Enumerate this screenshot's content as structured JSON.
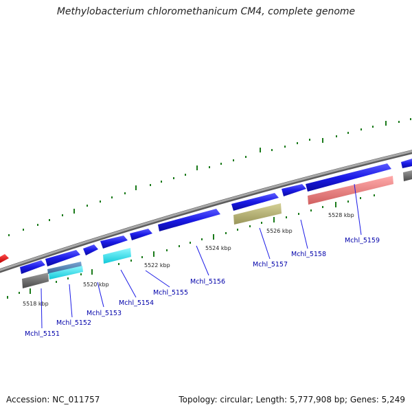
{
  "title": "Methylobacterium chloromethanicum CM4, complete genome",
  "footer": {
    "accession": "Accession: NC_011757",
    "summary": "Topology: circular; Length: 5,777,908 bp; Genes: 5,249"
  },
  "scale_labels": [
    "5518 kbp",
    "5520 kbp",
    "5522 kbp",
    "5524 kbp",
    "5526 kbp",
    "5528 kbp"
  ],
  "gene_labels": [
    "Mchl_5151",
    "Mchl_5152",
    "Mchl_5153",
    "Mchl_5154",
    "Mchl_5155",
    "Mchl_5156",
    "Mchl_5157",
    "Mchl_5158",
    "Mchl_5159"
  ],
  "colors": {
    "backbone": "#8c8c8c",
    "gene_forward": "#1a1ae6",
    "gene_reverse_red": "#e60000",
    "cog_gray": "#6e6e6e",
    "cog_steel": "#4f7fb0",
    "cog_cyan": "#19e6f0",
    "cog_olive": "#b8b46e",
    "cog_pink": "#eb8080",
    "tick": "#1a7a1a",
    "label": "#0000aa"
  }
}
